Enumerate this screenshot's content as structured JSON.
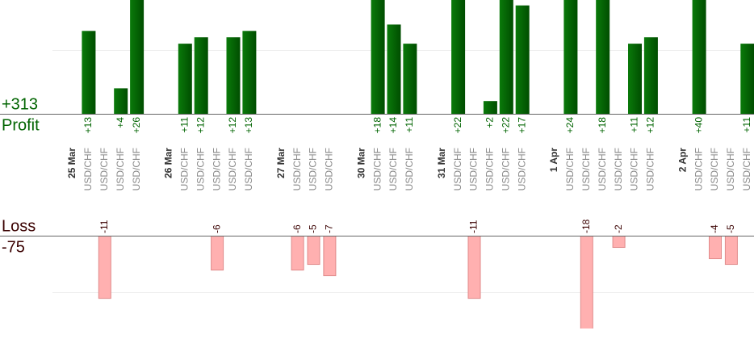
{
  "chart_data": {
    "type": "bar",
    "profit_total": "+313",
    "profit_label": "Profit",
    "loss_label": "Loss",
    "loss_total": "-75",
    "profit_ylim": [
      0,
      17.85
    ],
    "profit_yticks": [
      10
    ],
    "loss_ylim": [
      -16.4,
      0
    ],
    "loss_yticks": [
      -10
    ],
    "profit_color": "#006400",
    "loss_color": "#ffb0b0",
    "groups": [
      {
        "label": "25 Mar",
        "trades": [
          {
            "symbol": "USD/CHF",
            "value": 13,
            "value_label": "+13"
          },
          {
            "symbol": "USD/CHF",
            "value": -11
          },
          {
            "symbol": "USD/CHF",
            "value": 4,
            "value_label": "+4"
          },
          {
            "symbol": "USD/CHF",
            "value": 26,
            "value_label": "+26"
          }
        ]
      },
      {
        "label": "26 Mar",
        "trades": [
          {
            "symbol": "USD/CHF",
            "value": 11,
            "value_label": "+11"
          },
          {
            "symbol": "USD/CHF",
            "value": 12,
            "value_label": "+12"
          },
          {
            "symbol": "USD/CHF",
            "value": -6
          },
          {
            "symbol": "USD/CHF",
            "value": 12,
            "value_label": "+12"
          },
          {
            "symbol": "USD/CHF",
            "value": 13,
            "value_label": "+13"
          }
        ]
      },
      {
        "label": "27 Mar",
        "trades": [
          {
            "symbol": "USD/CHF",
            "value": -6
          },
          {
            "symbol": "USD/CHF",
            "value": -5
          },
          {
            "symbol": "USD/CHF",
            "value": -7
          }
        ]
      },
      {
        "label": "30 Mar",
        "trades": [
          {
            "symbol": "USD/CHF",
            "value": 18,
            "value_label": "+18"
          },
          {
            "symbol": "USD/CHF",
            "value": 14,
            "value_label": "+14"
          },
          {
            "symbol": "USD/CHF",
            "value": 11,
            "value_label": "+11"
          }
        ]
      },
      {
        "label": "31 Mar",
        "trades": [
          {
            "symbol": "USD/CHF",
            "value": 22,
            "value_label": "+22"
          },
          {
            "symbol": "USD/CHF",
            "value": -11
          },
          {
            "symbol": "USD/CHF",
            "value": 2,
            "value_label": "+2"
          },
          {
            "symbol": "USD/CHF",
            "value": 22,
            "value_label": "+22"
          },
          {
            "symbol": "USD/CHF",
            "value": 17,
            "value_label": "+17"
          }
        ]
      },
      {
        "label": "1 Apr",
        "trades": [
          {
            "symbol": "USD/CHF",
            "value": 24,
            "value_label": "+24"
          },
          {
            "symbol": "USD/CHF",
            "value": -18
          },
          {
            "symbol": "USD/CHF",
            "value": 18,
            "value_label": "+18"
          },
          {
            "symbol": "USD/CHF",
            "value": -2
          },
          {
            "symbol": "USD/CHF",
            "value": 11,
            "value_label": "+11"
          },
          {
            "symbol": "USD/CHF",
            "value": 12,
            "value_label": "+12"
          }
        ]
      },
      {
        "label": "2 Apr",
        "trades": [
          {
            "symbol": "USD/CHF",
            "value": 40,
            "value_label": "+40"
          },
          {
            "symbol": "USD/CHF",
            "value": -4
          },
          {
            "symbol": "USD/CHF",
            "value": -5
          },
          {
            "symbol": "USD/CHF",
            "value": 11,
            "value_label": "+11"
          }
        ]
      }
    ]
  }
}
